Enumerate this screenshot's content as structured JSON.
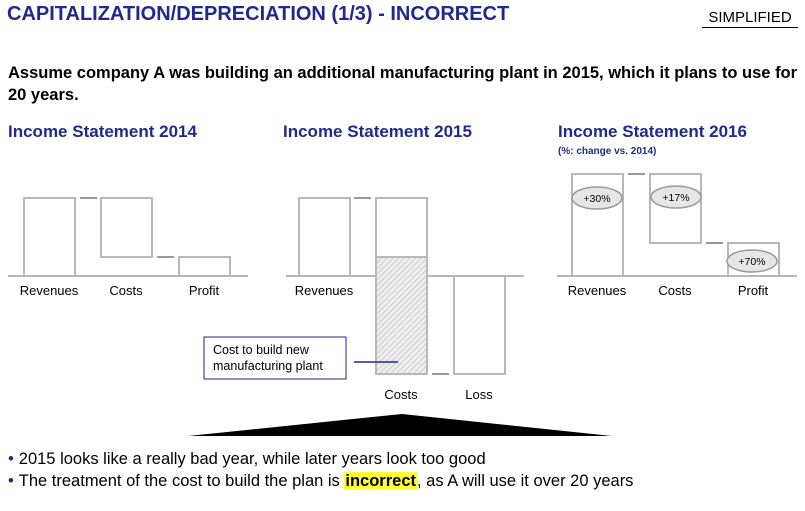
{
  "header": {
    "title": "CAPITALIZATION/DEPRECIATION (1/3) - INCORRECT",
    "tag": "SIMPLIFIED"
  },
  "intro": "Assume company A was building an additional manufacturing plant in 2015, which it plans to use for 20 years.",
  "statements": [
    {
      "title": "Income Statement 2014",
      "labels": [
        "Revenues",
        "Costs",
        "Profit"
      ]
    },
    {
      "title": "Income Statement 2015",
      "labels": [
        "Revenues",
        "Costs",
        "Loss"
      ]
    },
    {
      "title": "Income Statement 2016",
      "note": "(%: change vs. 2014)",
      "labels": [
        "Revenues",
        "Costs",
        "Profit"
      ],
      "changes": [
        "+30%",
        "+17%",
        "+70%"
      ]
    }
  ],
  "callout": "Cost to build new manufacturing plant",
  "bullets": {
    "b1": "2015 looks like a really bad year, while later years look too good",
    "b2_pre": "The treatment of the cost to build the plan is ",
    "b2_hl": "incorrect",
    "b2_post": ", as A will use it over 20 years"
  },
  "colors": {
    "title": "#1f2a8a",
    "bar_stroke": "#b8b8b8",
    "highlight": "#ffff33",
    "bubble_fill": "#e6e6e6"
  }
}
